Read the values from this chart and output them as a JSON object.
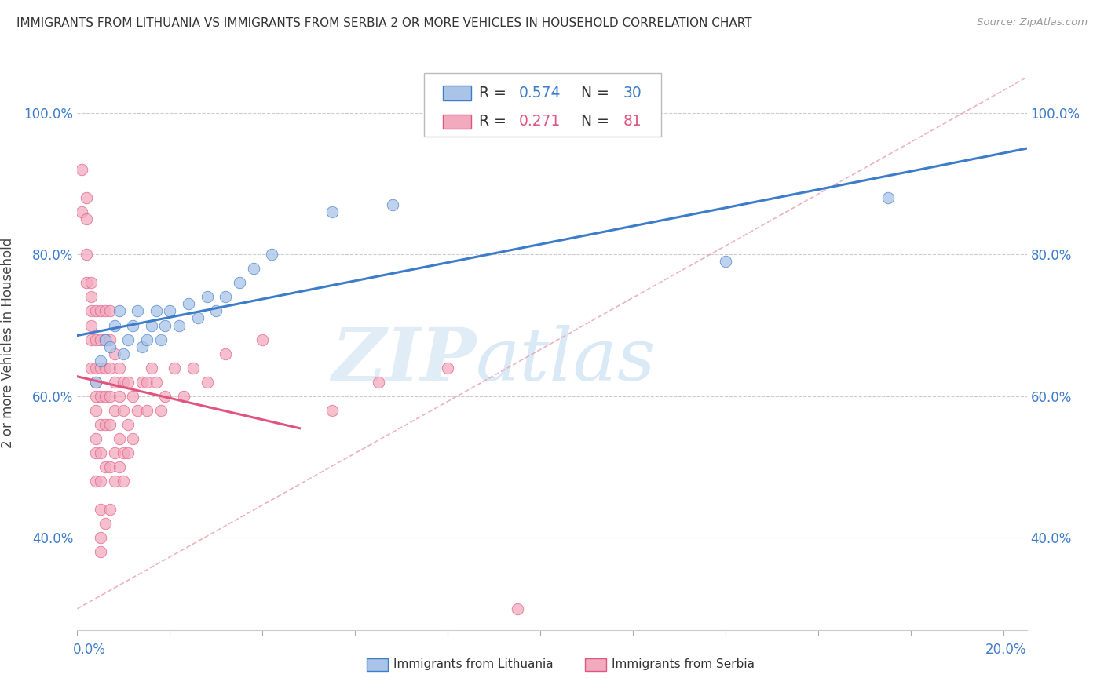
{
  "title": "IMMIGRANTS FROM LITHUANIA VS IMMIGRANTS FROM SERBIA 2 OR MORE VEHICLES IN HOUSEHOLD CORRELATION CHART",
  "source": "Source: ZipAtlas.com",
  "ylabel": "2 or more Vehicles in Household",
  "color_lithuania": "#aac4e8",
  "color_serbia": "#f2aabe",
  "line_color_lithuania": "#3d7cc9",
  "line_color_serbia": "#e05580",
  "diagonal_color": "#e8a0b0",
  "watermark_zip": "ZIP",
  "watermark_atlas": "atlas",
  "yticks": [
    0.4,
    0.6,
    0.8,
    1.0
  ],
  "ytick_labels": [
    "40.0%",
    "60.0%",
    "80.0%",
    "100.0%"
  ],
  "xlim": [
    0.0,
    0.205
  ],
  "ylim": [
    0.27,
    1.08
  ],
  "legend_r_lith": "0.574",
  "legend_n_lith": "30",
  "legend_r_serb": "0.271",
  "legend_n_serb": "81",
  "lithuania_x": [
    0.004,
    0.005,
    0.006,
    0.007,
    0.008,
    0.009,
    0.01,
    0.011,
    0.012,
    0.013,
    0.014,
    0.015,
    0.016,
    0.017,
    0.018,
    0.019,
    0.02,
    0.022,
    0.024,
    0.026,
    0.028,
    0.03,
    0.032,
    0.035,
    0.038,
    0.042,
    0.055,
    0.068,
    0.14,
    0.175
  ],
  "lithuania_y": [
    0.62,
    0.65,
    0.68,
    0.67,
    0.7,
    0.72,
    0.66,
    0.68,
    0.7,
    0.72,
    0.67,
    0.68,
    0.7,
    0.72,
    0.68,
    0.7,
    0.72,
    0.7,
    0.73,
    0.71,
    0.74,
    0.72,
    0.74,
    0.76,
    0.78,
    0.8,
    0.86,
    0.87,
    0.79,
    0.88
  ],
  "serbia_x": [
    0.001,
    0.001,
    0.002,
    0.002,
    0.002,
    0.002,
    0.003,
    0.003,
    0.003,
    0.003,
    0.003,
    0.003,
    0.004,
    0.004,
    0.004,
    0.004,
    0.004,
    0.004,
    0.004,
    0.004,
    0.004,
    0.005,
    0.005,
    0.005,
    0.005,
    0.005,
    0.005,
    0.005,
    0.005,
    0.005,
    0.005,
    0.006,
    0.006,
    0.006,
    0.006,
    0.006,
    0.006,
    0.006,
    0.007,
    0.007,
    0.007,
    0.007,
    0.007,
    0.007,
    0.007,
    0.008,
    0.008,
    0.008,
    0.008,
    0.008,
    0.009,
    0.009,
    0.009,
    0.009,
    0.01,
    0.01,
    0.01,
    0.01,
    0.011,
    0.011,
    0.011,
    0.012,
    0.012,
    0.013,
    0.014,
    0.015,
    0.015,
    0.016,
    0.017,
    0.018,
    0.019,
    0.021,
    0.023,
    0.025,
    0.028,
    0.032,
    0.04,
    0.055,
    0.065,
    0.08,
    0.095
  ],
  "serbia_y": [
    0.86,
    0.92,
    0.8,
    0.85,
    0.88,
    0.76,
    0.72,
    0.76,
    0.68,
    0.7,
    0.74,
    0.64,
    0.54,
    0.58,
    0.6,
    0.62,
    0.64,
    0.68,
    0.72,
    0.48,
    0.52,
    0.44,
    0.48,
    0.52,
    0.56,
    0.6,
    0.64,
    0.68,
    0.38,
    0.4,
    0.72,
    0.42,
    0.5,
    0.56,
    0.6,
    0.64,
    0.68,
    0.72,
    0.44,
    0.5,
    0.56,
    0.6,
    0.64,
    0.68,
    0.72,
    0.48,
    0.52,
    0.58,
    0.62,
    0.66,
    0.5,
    0.54,
    0.6,
    0.64,
    0.48,
    0.52,
    0.58,
    0.62,
    0.52,
    0.56,
    0.62,
    0.54,
    0.6,
    0.58,
    0.62,
    0.58,
    0.62,
    0.64,
    0.62,
    0.58,
    0.6,
    0.64,
    0.6,
    0.64,
    0.62,
    0.66,
    0.68,
    0.58,
    0.62,
    0.64,
    0.3
  ]
}
